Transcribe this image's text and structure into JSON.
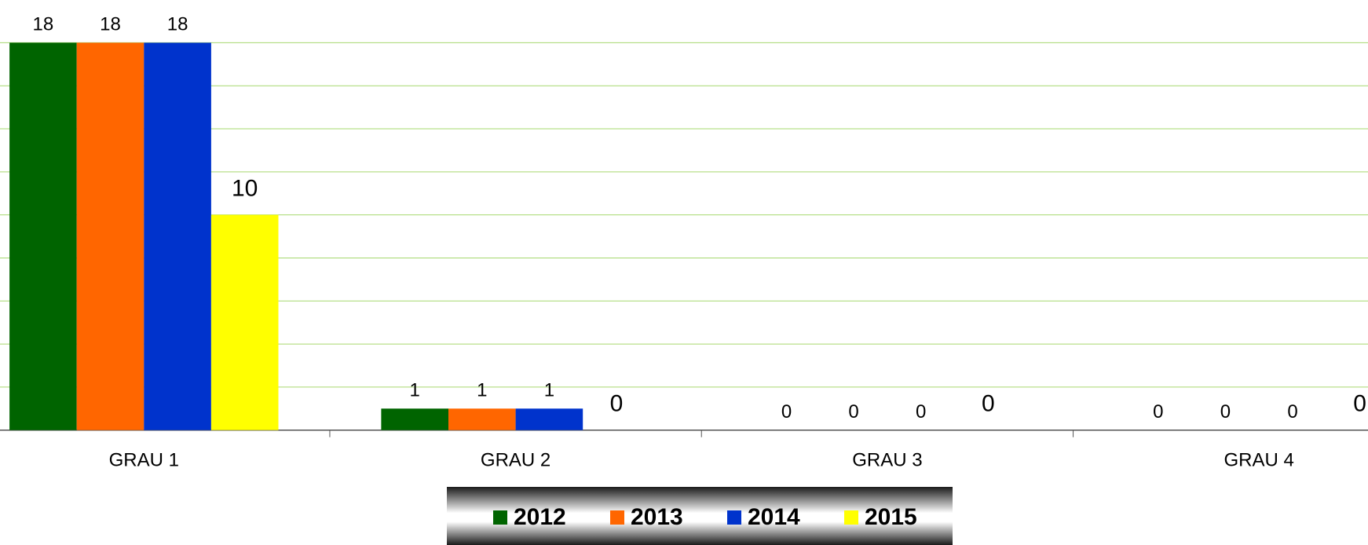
{
  "chart_data": {
    "type": "bar",
    "categories": [
      "GRAU 1",
      "GRAU 2",
      "GRAU 3",
      "GRAU 4"
    ],
    "series": [
      {
        "name": "2012",
        "color": "#006400",
        "values": [
          18,
          1,
          0,
          0
        ]
      },
      {
        "name": "2013",
        "color": "#ff6600",
        "values": [
          18,
          1,
          0,
          0
        ]
      },
      {
        "name": "2014",
        "color": "#0033cc",
        "values": [
          18,
          1,
          0,
          0
        ]
      },
      {
        "name": "2015",
        "color": "#ffff00",
        "values": [
          10,
          0,
          0,
          0
        ]
      }
    ],
    "ylim": [
      0,
      18
    ],
    "yticks": [
      0,
      2,
      4,
      6,
      8,
      10,
      12,
      14,
      16,
      18
    ],
    "grid": true,
    "legend": "bottom"
  }
}
